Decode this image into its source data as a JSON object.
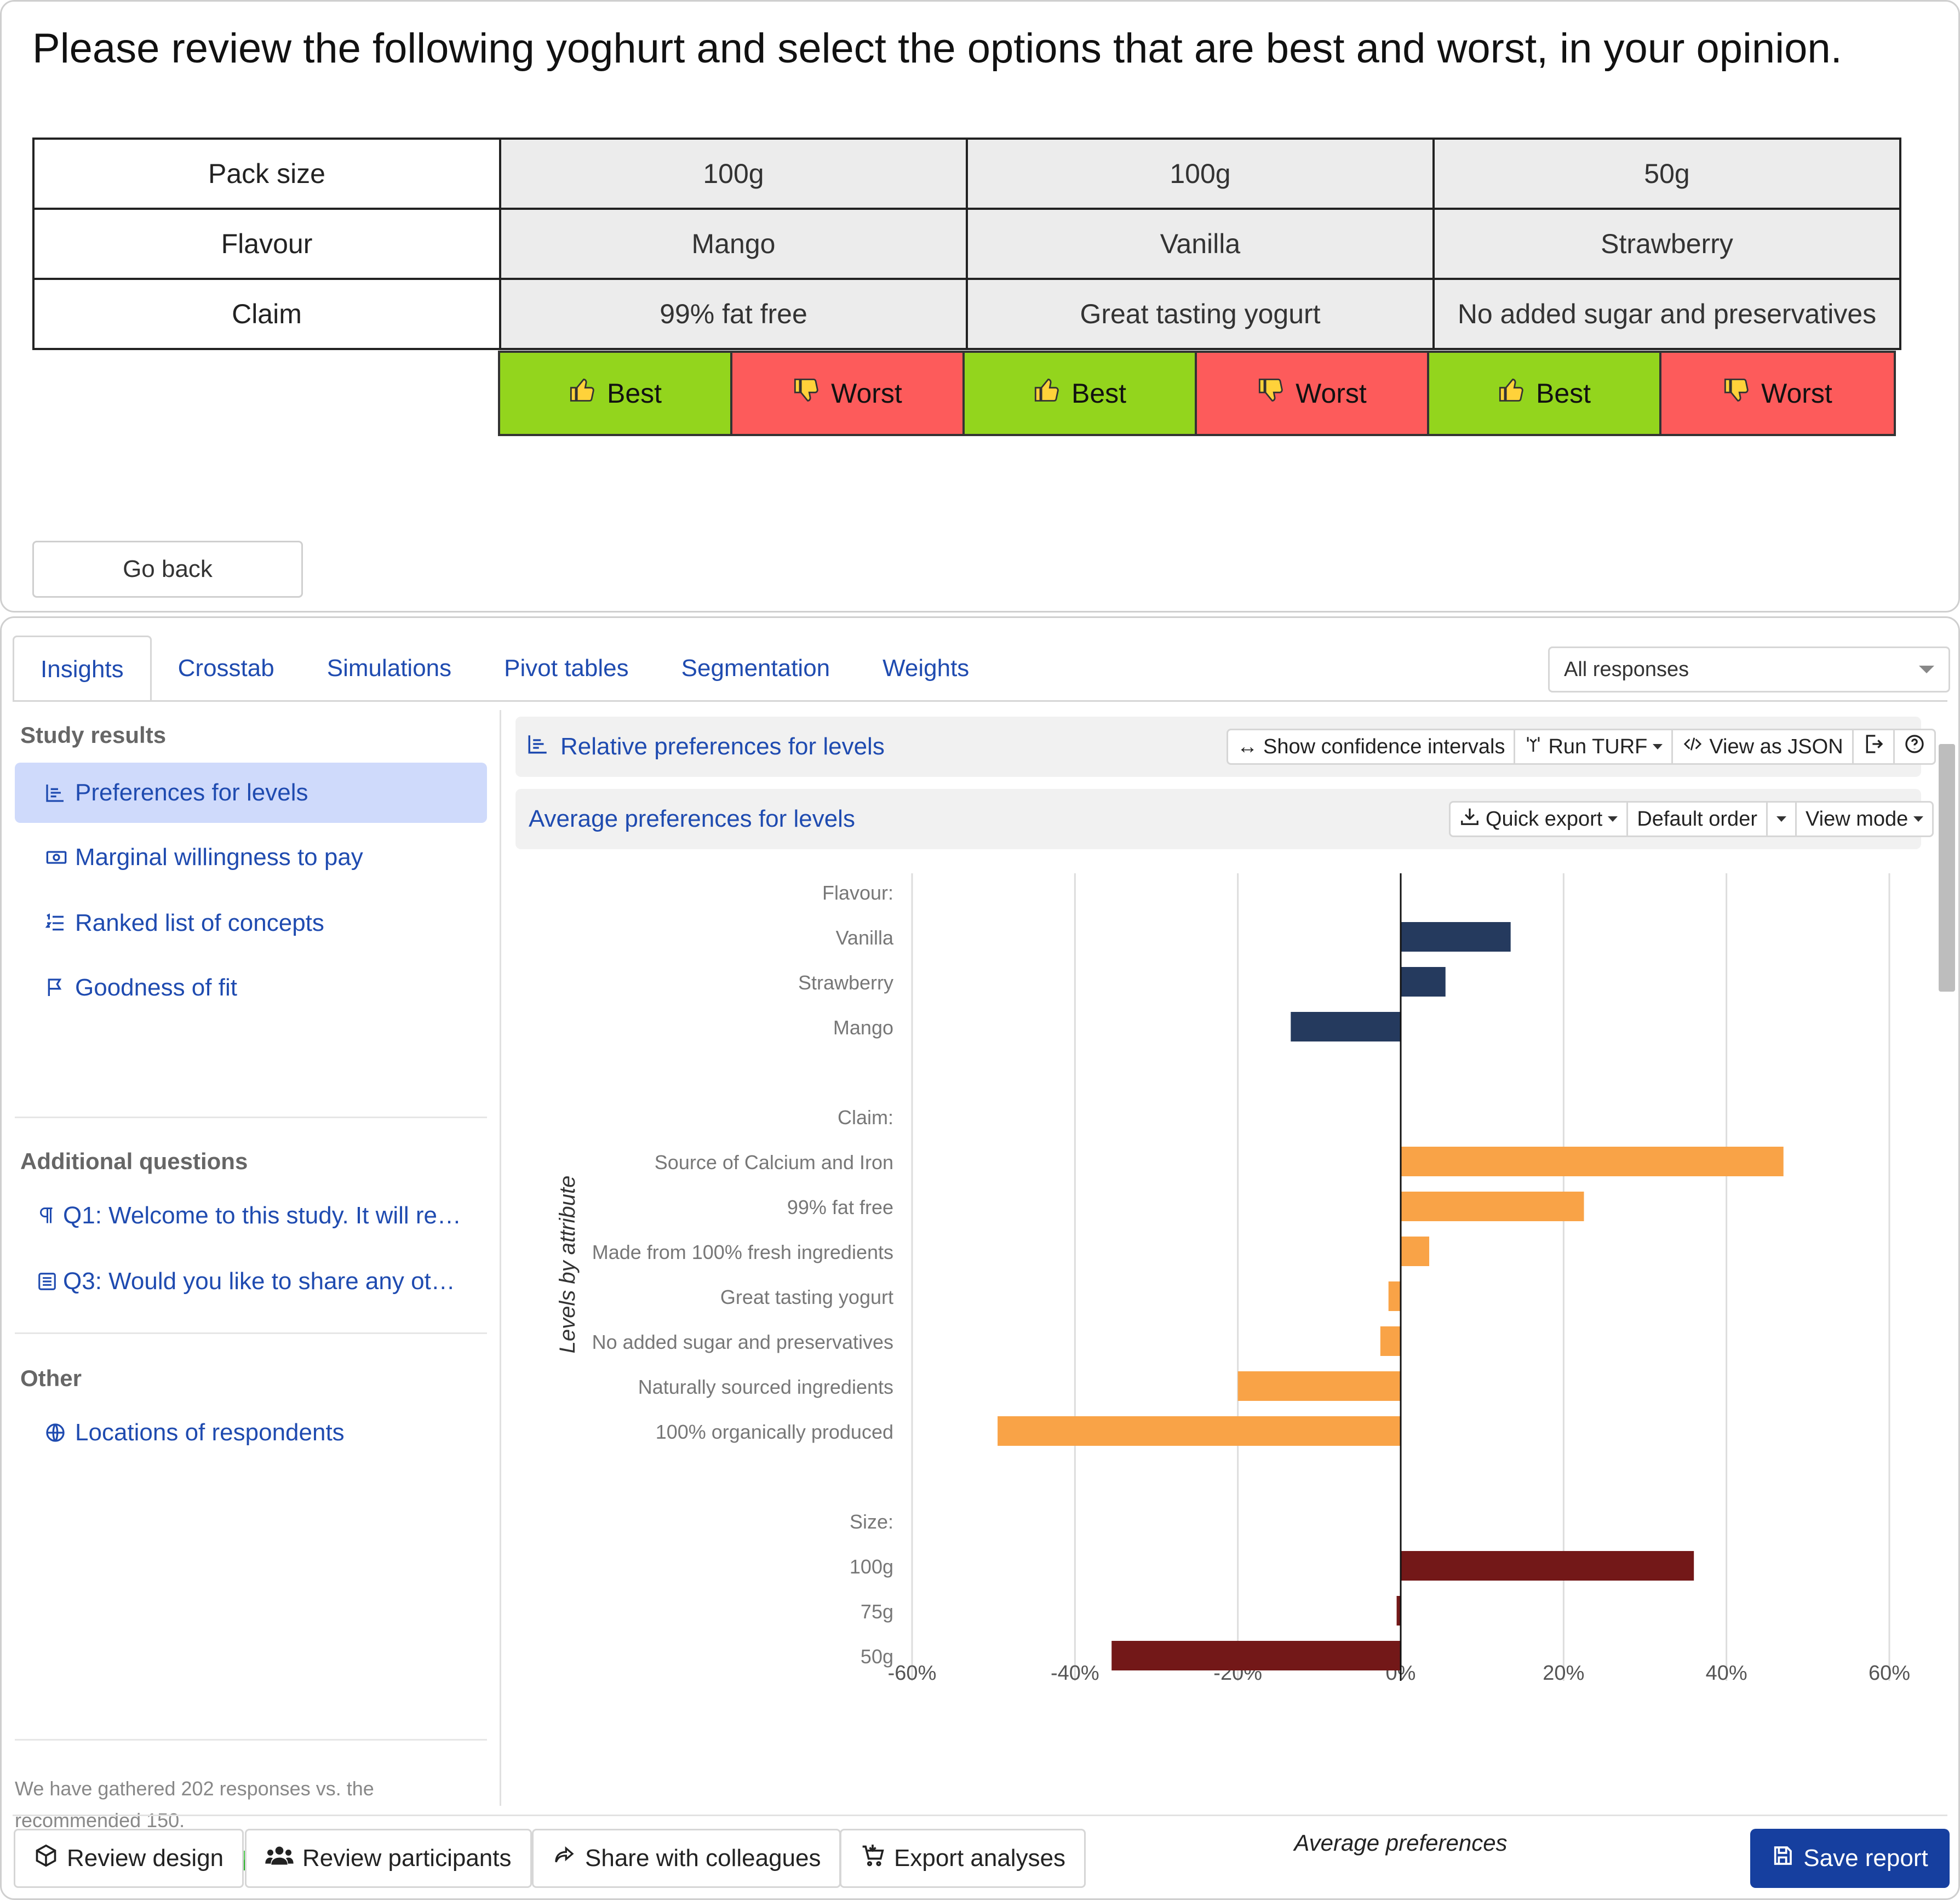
{
  "survey": {
    "question": "Please review the following yoghurt and select the options that are best and worst, in your opinion.",
    "rows": [
      {
        "label": "Pack size",
        "values": [
          "100g",
          "100g",
          "50g"
        ]
      },
      {
        "label": "Flavour",
        "values": [
          "Mango",
          "Vanilla",
          "Strawberry"
        ]
      },
      {
        "label": "Claim",
        "values": [
          "99% fat free",
          "Great tasting yogurt",
          "No added sugar and preservatives"
        ]
      }
    ],
    "best_label": "Best",
    "worst_label": "Worst",
    "best_color": "#93d51d",
    "worst_color": "#fd5b5b",
    "go_back": "Go back"
  },
  "tabs": [
    "Insights",
    "Crosstab",
    "Simulations",
    "Pivot tables",
    "Segmentation",
    "Weights"
  ],
  "response_filter": "All responses",
  "sidebar": {
    "study_results_title": "Study results",
    "study_results": [
      {
        "label": "Preferences for levels",
        "icon": "bar-chart-icon"
      },
      {
        "label": "Marginal willingness to pay",
        "icon": "money-icon"
      },
      {
        "label": "Ranked list of concepts",
        "icon": "ordered-list-icon"
      },
      {
        "label": "Goodness of fit",
        "icon": "flag-icon"
      }
    ],
    "additional_title": "Additional questions",
    "additional": [
      {
        "label": "Q1: Welcome to this study. It will re…",
        "icon": "paragraph-icon"
      },
      {
        "label": "Q3: Would you like to share any ot…",
        "icon": "text-box-icon"
      }
    ],
    "other_title": "Other",
    "other": [
      {
        "label": "Locations of respondents",
        "icon": "globe-icon"
      }
    ],
    "gathered_text": "We have gathered 202 responses vs. the recommended 150.",
    "progress": 1.0
  },
  "header": {
    "title": "Relative preferences for levels",
    "tools": [
      "Show confidence intervals",
      "Run TURF",
      "View as JSON"
    ]
  },
  "subheader": {
    "title": "Average preferences for levels",
    "quick_export": "Quick export",
    "default_order": "Default order",
    "view_mode": "View mode"
  },
  "chart_data": {
    "type": "bar",
    "orientation": "horizontal",
    "xlabel": "Average preferences",
    "ylabel": "Levels by attribute",
    "xlim": [
      -60,
      60
    ],
    "xticks": [
      "-60%",
      "-40%",
      "-20%",
      "0%",
      "20%",
      "40%",
      "60%"
    ],
    "grid": true,
    "groups": [
      {
        "attribute": "Flavour:",
        "color": "#253a5e",
        "levels": [
          {
            "label": "Vanilla",
            "value": 13.5
          },
          {
            "label": "Strawberry",
            "value": 5.5
          },
          {
            "label": "Mango",
            "value": -13.5
          }
        ]
      },
      {
        "attribute": "Claim:",
        "color": "#f9a347",
        "levels": [
          {
            "label": "Source of Calcium and Iron",
            "value": 47
          },
          {
            "label": "99% fat free",
            "value": 22.5
          },
          {
            "label": "Made from 100% fresh ingredients",
            "value": 3.5
          },
          {
            "label": "Great tasting yogurt",
            "value": -1.5
          },
          {
            "label": "No added sugar and preservatives",
            "value": -2.5
          },
          {
            "label": "Naturally sourced ingredients",
            "value": -20
          },
          {
            "label": "100% organically produced",
            "value": -49.5
          }
        ]
      },
      {
        "attribute": "Size:",
        "color": "#731818",
        "levels": [
          {
            "label": "100g",
            "value": 36
          },
          {
            "label": "75g",
            "value": -0.5
          },
          {
            "label": "50g",
            "value": -35.5
          }
        ]
      }
    ]
  },
  "footer": {
    "buttons": [
      "Review design",
      "Review participants",
      "Share with colleagues",
      "Export analyses"
    ],
    "save": "Save report"
  }
}
